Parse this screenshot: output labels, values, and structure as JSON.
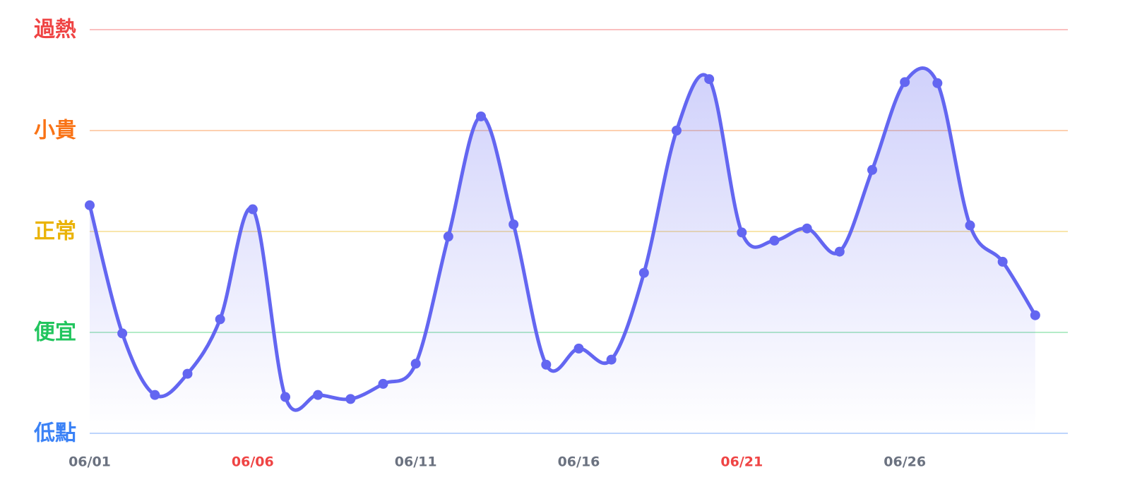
{
  "chart_data": {
    "type": "line",
    "categories": [
      "06/01",
      null,
      null,
      null,
      null,
      "06/06",
      null,
      null,
      null,
      null,
      "06/11",
      null,
      null,
      null,
      null,
      "06/16",
      null,
      null,
      null,
      null,
      "06/21",
      null,
      null,
      null,
      null,
      "06/26",
      null,
      null,
      null,
      null
    ],
    "category_colors": [
      "#6b7280",
      null,
      null,
      null,
      null,
      "#ef4444",
      null,
      null,
      null,
      null,
      "#6b7280",
      null,
      null,
      null,
      null,
      "#6b7280",
      null,
      null,
      null,
      null,
      "#ef4444",
      null,
      null,
      null,
      null,
      "#6b7280",
      null,
      null,
      null,
      null
    ],
    "series": [
      {
        "color": "#6366f1",
        "values": [
          2.26,
          0.99,
          0.38,
          0.59,
          1.13,
          2.22,
          0.36,
          0.38,
          0.34,
          0.49,
          0.69,
          1.95,
          3.14,
          2.07,
          0.68,
          0.84,
          0.73,
          1.59,
          3.0,
          3.51,
          1.99,
          1.91,
          2.03,
          1.8,
          2.61,
          3.48,
          3.47,
          2.06,
          1.7,
          1.17
        ]
      }
    ],
    "ylim": [
      0,
      4
    ],
    "yticks": [
      {
        "value": 0,
        "label": "低點",
        "color": "#3b82f6"
      },
      {
        "value": 1,
        "label": "便宜",
        "color": "#22c55e"
      },
      {
        "value": 2,
        "label": "正常",
        "color": "#eab308"
      },
      {
        "value": 3,
        "label": "小貴",
        "color": "#f97316"
      },
      {
        "value": 4,
        "label": "過熱",
        "color": "#ef4444"
      }
    ],
    "grid": true
  }
}
